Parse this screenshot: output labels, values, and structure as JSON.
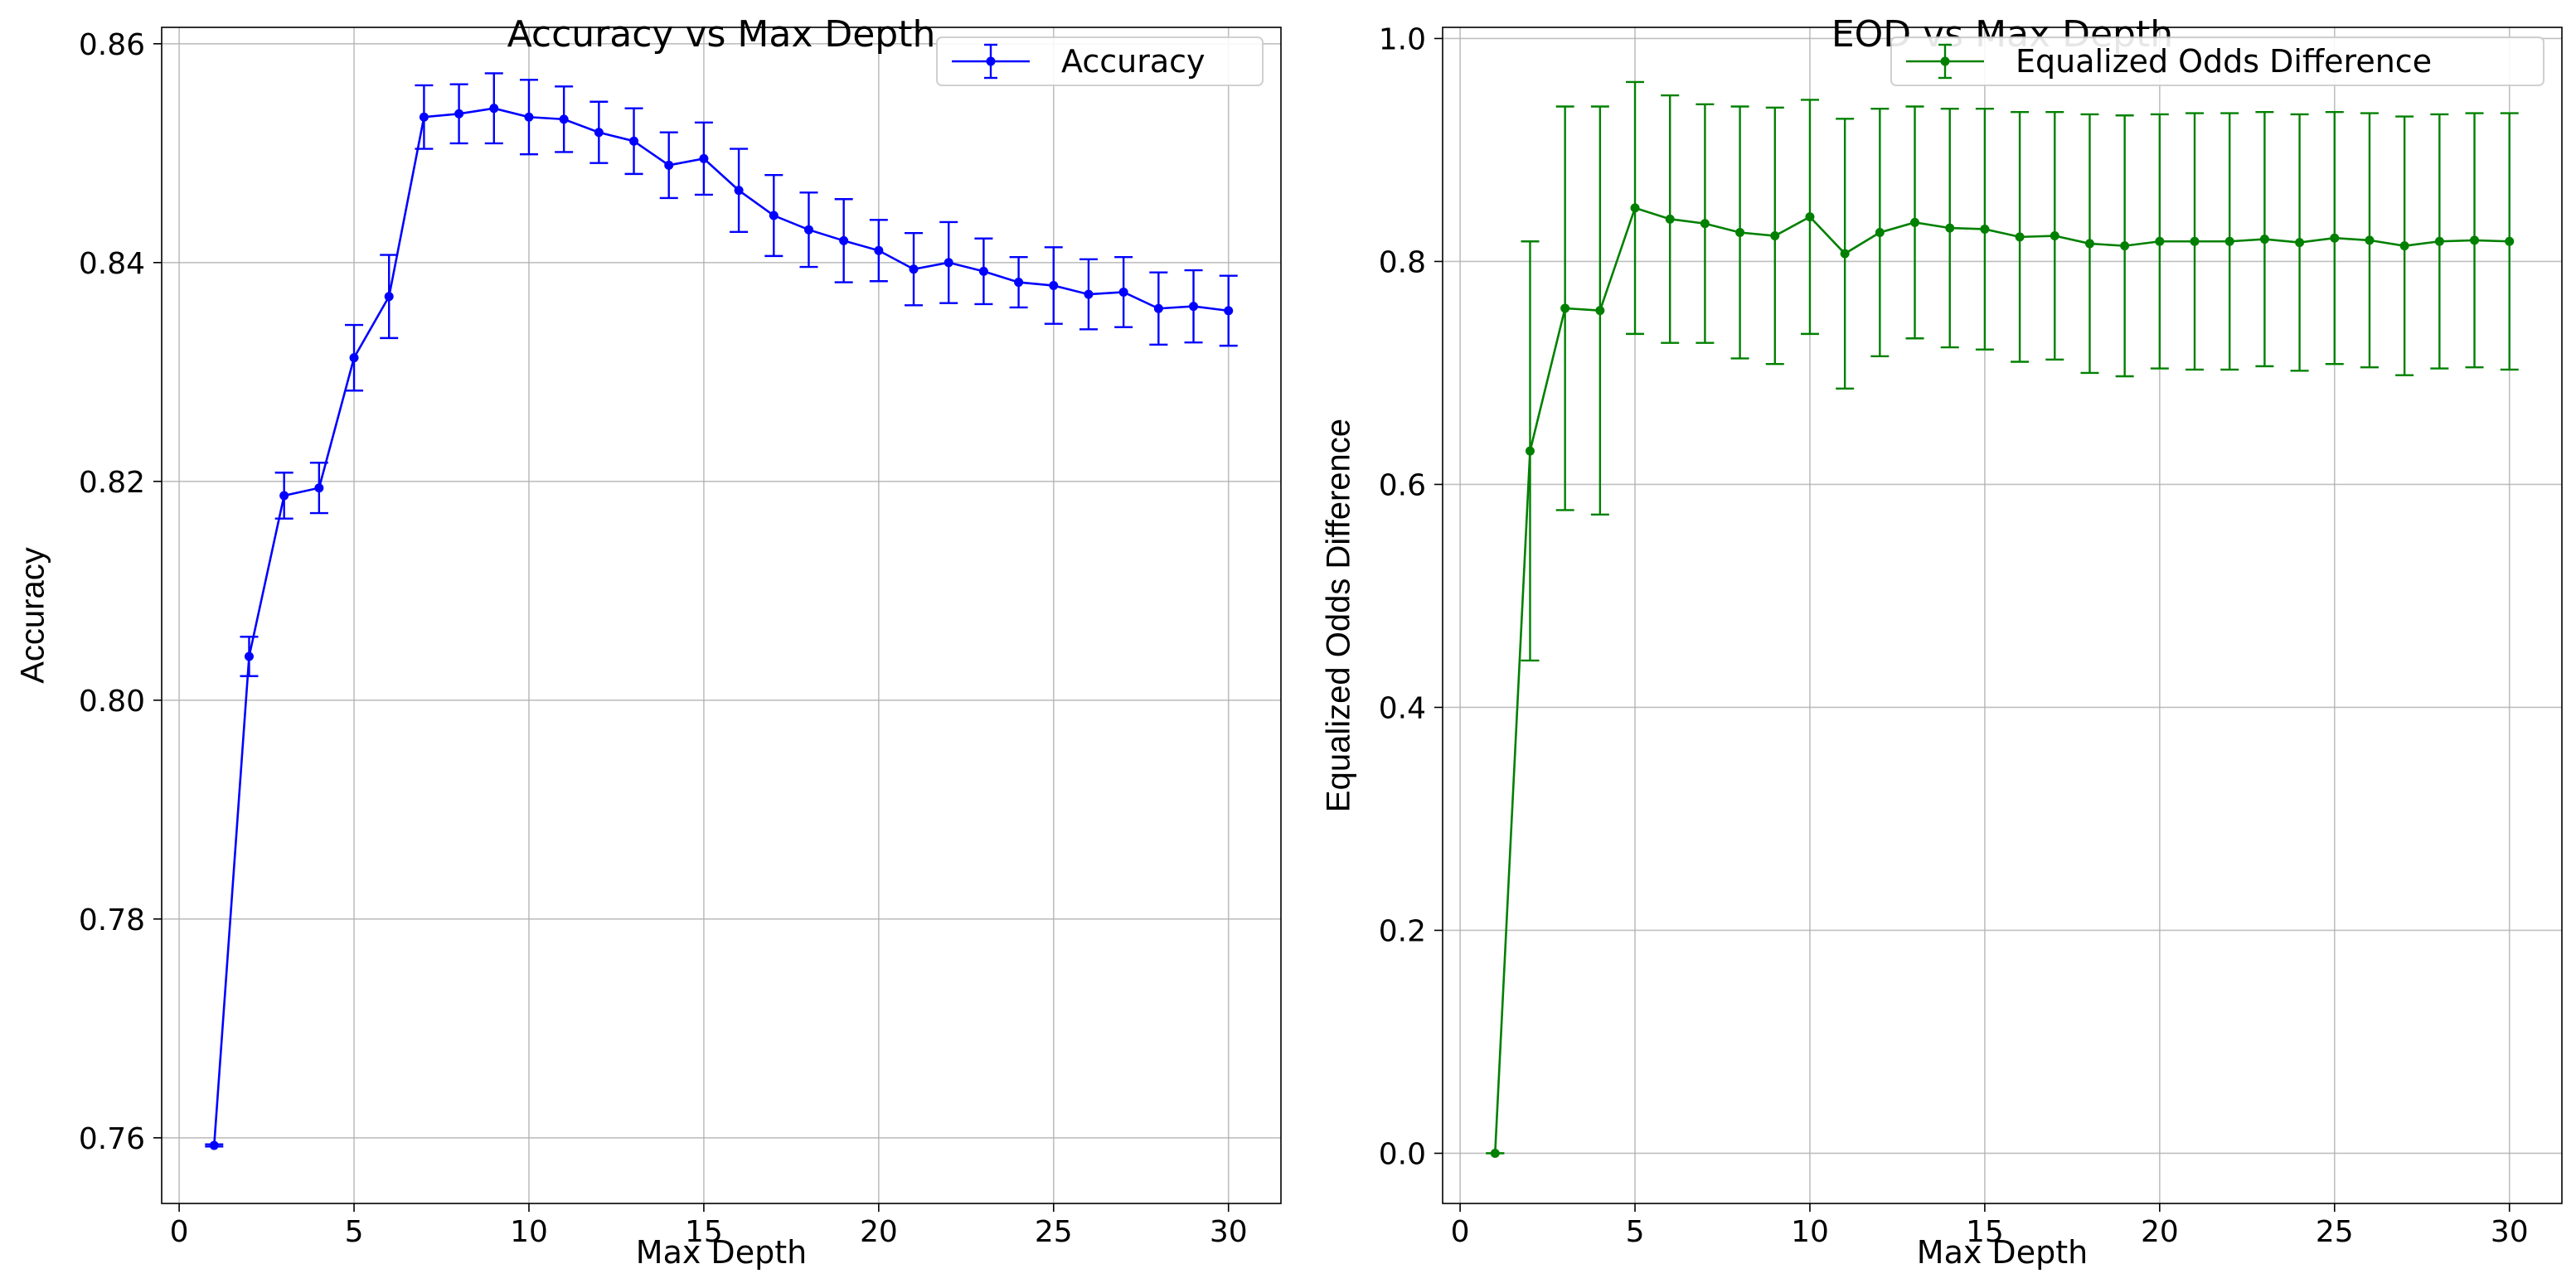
{
  "chart_data": [
    {
      "type": "line",
      "title": "Accuracy vs Max Depth",
      "xlabel": "Max Depth",
      "ylabel": "Accuracy",
      "xlim": [
        -0.5,
        31.5
      ],
      "ylim": [
        0.754,
        0.8615
      ],
      "xticks": [
        0,
        5,
        10,
        15,
        20,
        25,
        30
      ],
      "xtick_labels": [
        "0",
        "5",
        "10",
        "15",
        "20",
        "25",
        "30"
      ],
      "yticks": [
        0.76,
        0.78,
        0.8,
        0.82,
        0.84,
        0.86
      ],
      "ytick_labels": [
        "0.76",
        "0.78",
        "0.80",
        "0.82",
        "0.84",
        "0.86"
      ],
      "grid": true,
      "legend_position": "top-right",
      "color": "#0000ff",
      "series": [
        {
          "name": "Accuracy",
          "x": [
            1,
            2,
            3,
            4,
            5,
            6,
            7,
            8,
            9,
            10,
            11,
            12,
            13,
            14,
            15,
            16,
            17,
            18,
            19,
            20,
            21,
            22,
            23,
            24,
            25,
            26,
            27,
            28,
            29,
            30
          ],
          "y": [
            0.7593,
            0.804,
            0.8187,
            0.8194,
            0.8313,
            0.8369,
            0.8533,
            0.8536,
            0.8541,
            0.8533,
            0.8531,
            0.8519,
            0.8511,
            0.8489,
            0.8495,
            0.8466,
            0.8443,
            0.843,
            0.842,
            0.8411,
            0.8394,
            0.84,
            0.8392,
            0.8382,
            0.8379,
            0.8371,
            0.8373,
            0.8358,
            0.836,
            0.8356
          ],
          "err": [
            0.0001,
            0.0018,
            0.0021,
            0.0023,
            0.003,
            0.0038,
            0.0029,
            0.0027,
            0.0032,
            0.0034,
            0.003,
            0.0028,
            0.003,
            0.003,
            0.0033,
            0.0038,
            0.0037,
            0.0034,
            0.0038,
            0.0028,
            0.0033,
            0.0037,
            0.003,
            0.0023,
            0.0035,
            0.0032,
            0.0032,
            0.0033,
            0.0033,
            0.0032
          ]
        }
      ]
    },
    {
      "type": "line",
      "title": "EOD vs Max Depth",
      "xlabel": "Max Depth",
      "ylabel": "Equalized Odds Difference",
      "xlim": [
        -0.5,
        31.5
      ],
      "ylim": [
        -0.045,
        1.01
      ],
      "xticks": [
        0,
        5,
        10,
        15,
        20,
        25,
        30
      ],
      "xtick_labels": [
        "0",
        "5",
        "10",
        "15",
        "20",
        "25",
        "30"
      ],
      "yticks": [
        0.0,
        0.2,
        0.4,
        0.6,
        0.8,
        1.0
      ],
      "ytick_labels": [
        "0.0",
        "0.2",
        "0.4",
        "0.6",
        "0.8",
        "1.0"
      ],
      "grid": true,
      "legend_position": "top-right",
      "color": "#008000",
      "series": [
        {
          "name": "Equalized Odds Difference",
          "x": [
            1,
            2,
            3,
            4,
            5,
            6,
            7,
            8,
            9,
            10,
            11,
            12,
            13,
            14,
            15,
            16,
            17,
            18,
            19,
            20,
            21,
            22,
            23,
            24,
            25,
            26,
            27,
            28,
            29,
            30
          ],
          "y": [
            0.0,
            0.63,
            0.758,
            0.756,
            0.848,
            0.838,
            0.834,
            0.826,
            0.823,
            0.84,
            0.807,
            0.826,
            0.835,
            0.83,
            0.829,
            0.822,
            0.823,
            0.816,
            0.814,
            0.818,
            0.818,
            0.818,
            0.82,
            0.817,
            0.821,
            0.819,
            0.814,
            0.818,
            0.819,
            0.818
          ],
          "err": [
            0.0,
            0.188,
            0.181,
            0.183,
            0.113,
            0.111,
            0.107,
            0.113,
            0.115,
            0.105,
            0.121,
            0.111,
            0.104,
            0.107,
            0.108,
            0.112,
            0.111,
            0.116,
            0.117,
            0.114,
            0.115,
            0.115,
            0.114,
            0.115,
            0.113,
            0.114,
            0.116,
            0.114,
            0.114,
            0.115
          ]
        }
      ]
    }
  ]
}
